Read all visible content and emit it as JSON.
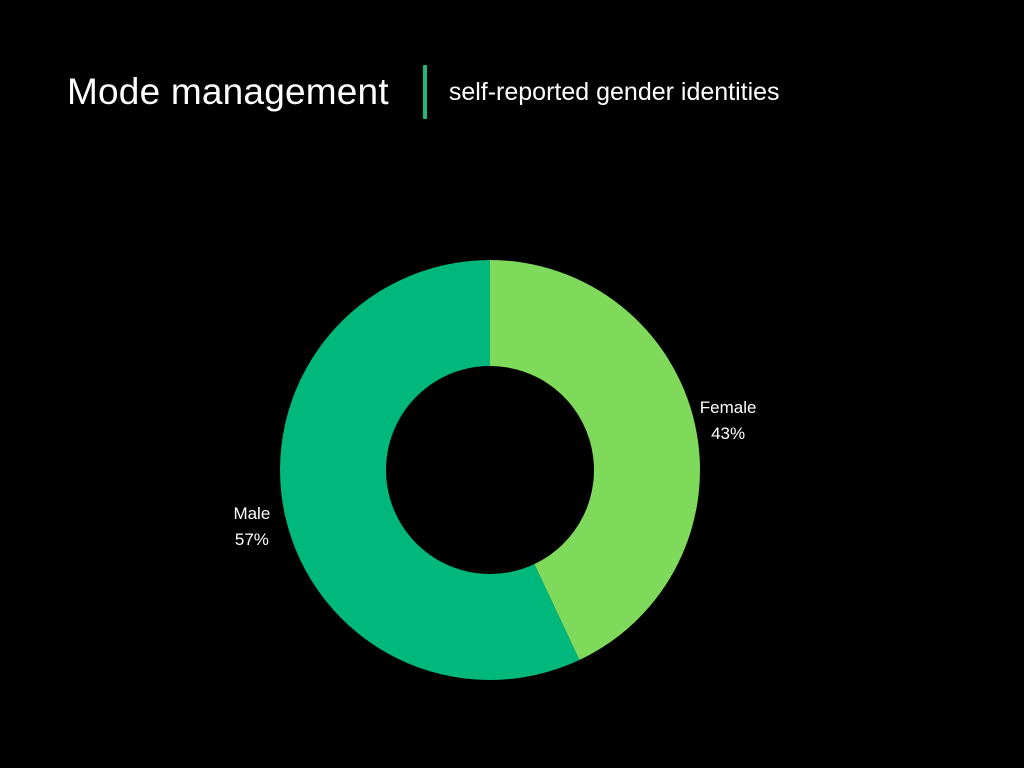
{
  "header": {
    "title": "Mode management",
    "subtitle": "self-reported gender identities",
    "divider_color": "#1fb97c"
  },
  "chart_data": {
    "type": "pie",
    "style": "donut",
    "title": "Mode management",
    "subtitle": "self-reported gender identities",
    "slices": [
      {
        "label": "Female",
        "value": 43,
        "display": "43%",
        "color": "#7fd95a"
      },
      {
        "label": "Male",
        "value": 57,
        "display": "57%",
        "color": "#00b87c"
      }
    ]
  }
}
